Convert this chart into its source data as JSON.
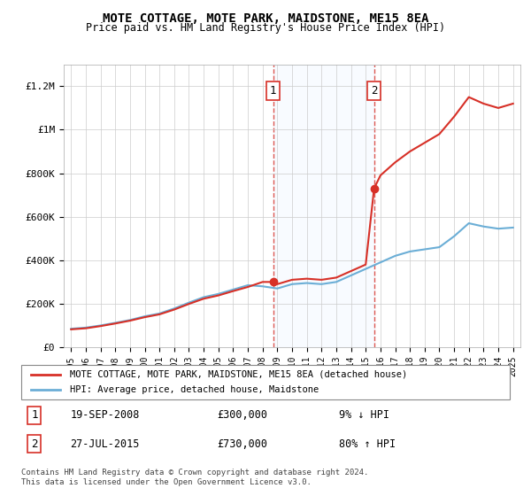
{
  "title": "MOTE COTTAGE, MOTE PARK, MAIDSTONE, ME15 8EA",
  "subtitle": "Price paid vs. HM Land Registry's House Price Index (HPI)",
  "legend_line1": "MOTE COTTAGE, MOTE PARK, MAIDSTONE, ME15 8EA (detached house)",
  "legend_line2": "HPI: Average price, detached house, Maidstone",
  "transaction1_label": "1",
  "transaction1_date": "19-SEP-2008",
  "transaction1_price": "£300,000",
  "transaction1_hpi": "9% ↓ HPI",
  "transaction2_label": "2",
  "transaction2_date": "27-JUL-2015",
  "transaction2_price": "£730,000",
  "transaction2_hpi": "80% ↑ HPI",
  "footer": "Contains HM Land Registry data © Crown copyright and database right 2024.\nThis data is licensed under the Open Government Licence v3.0.",
  "hpi_color": "#6baed6",
  "price_color": "#d73027",
  "background_color": "#ffffff",
  "plot_bg_color": "#ffffff",
  "grid_color": "#cccccc",
  "shaded_region_color": "#ddeeff",
  "transaction1_x": 2008.72,
  "transaction2_x": 2015.57,
  "ylim_max": 1300000,
  "ylim_min": 0
}
